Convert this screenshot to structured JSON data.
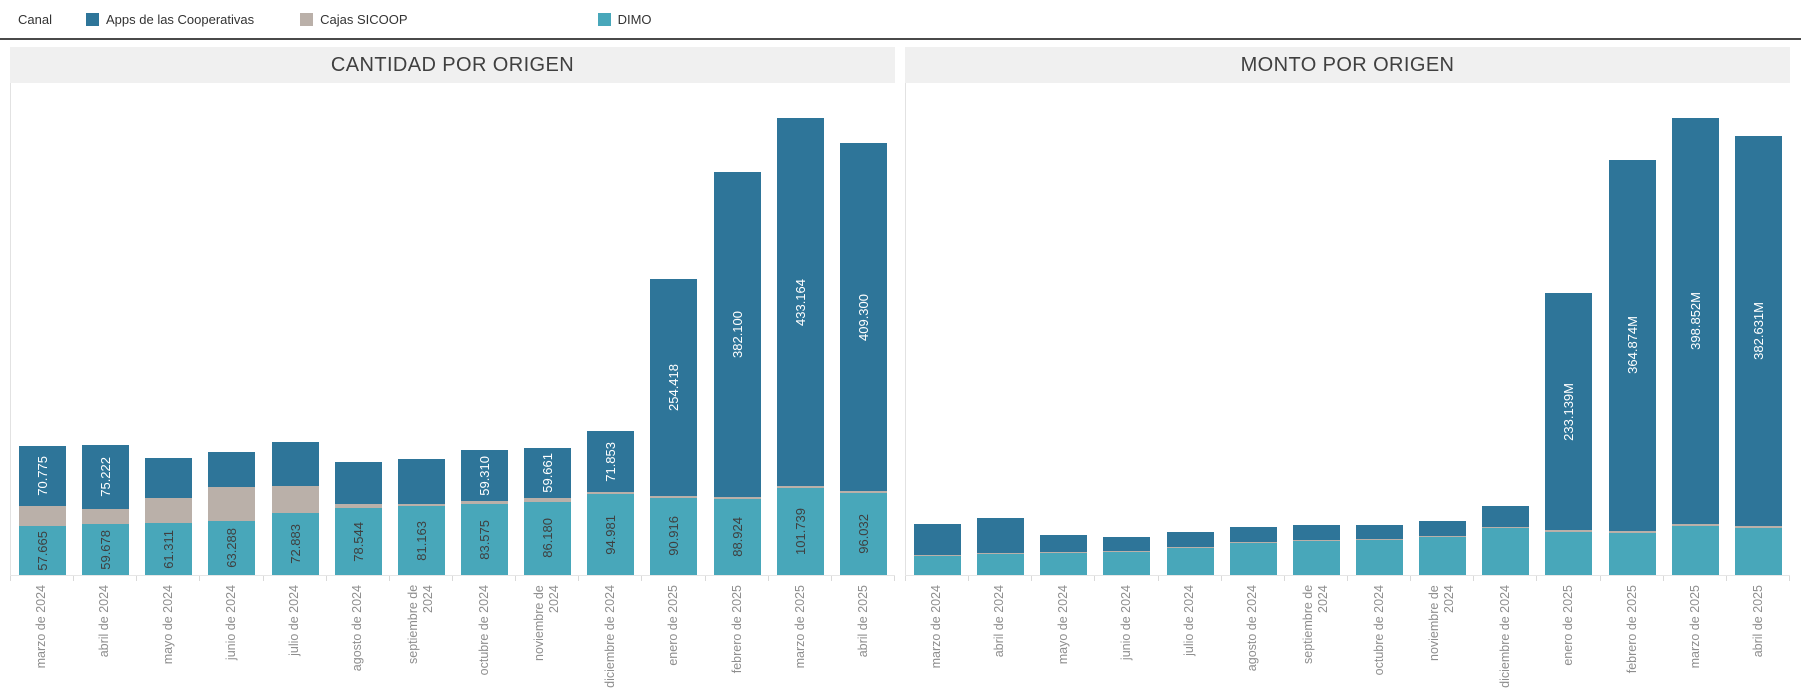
{
  "legend": {
    "title": "Canal",
    "items": [
      {
        "label": "Apps de las Cooperativas",
        "color": "#2E7599"
      },
      {
        "label": "Cajas SICOOP",
        "color": "#BAB0A9"
      },
      {
        "label": "DIMO",
        "color": "#48A7BA"
      }
    ]
  },
  "colors": {
    "apps_blue": "#2E7599",
    "cajas_gray": "#BAB0A9",
    "dimo_teal": "#48A7BA",
    "title_banner": "#F0F0F0",
    "axis_text": "#8E8E8E"
  },
  "chart_data": [
    {
      "type": "bar",
      "stacked": true,
      "title": "CANTIDAD POR ORIGEN",
      "xlabel": "",
      "ylabel": "",
      "ylim": [
        0,
        578000
      ],
      "ymax": 578000,
      "grid": false,
      "legend_position": "top",
      "categories": [
        "marzo de 2024",
        "abril de 2024",
        "mayo de 2024",
        "junio de 2024",
        "julio de 2024",
        "agosto de 2024",
        "septiembre de 2024",
        "octubre de 2024",
        "noviembre de 2024",
        "diciembre de 2024",
        "enero de 2025",
        "febrero de 2025",
        "marzo de 2025",
        "abril de 2025"
      ],
      "series": [
        {
          "name": "Apps de las Cooperativas",
          "color": "#2E7599",
          "label_color": "#FFFFFF",
          "values": [
            70775,
            75222,
            47000,
            41000,
            52000,
            49000,
            52000,
            59310,
            59661,
            71853,
            254418,
            382100,
            433164,
            409300
          ],
          "labels": [
            "70.775",
            "75.222",
            "",
            "",
            "",
            "",
            "",
            "59.310",
            "59.661",
            "71.853",
            "254.418",
            "382.100",
            "433.164",
            "409.300"
          ]
        },
        {
          "name": "Cajas SICOOP",
          "color": "#BAB0A9",
          "label_color": "#3F3F3F",
          "values": [
            23500,
            17600,
            29400,
            40000,
            31700,
            4700,
            2700,
            3500,
            3900,
            2300,
            2300,
            2300,
            2300,
            2300
          ],
          "labels": [
            "",
            "",
            "",
            "",
            "",
            "",
            "",
            "",
            "",
            "",
            "",
            "",
            "",
            ""
          ]
        },
        {
          "name": "DIMO",
          "color": "#48A7BA",
          "label_color": "#3F3F3F",
          "values": [
            57665,
            59678,
            61311,
            63288,
            72883,
            78544,
            81163,
            83575,
            86180,
            94981,
            90916,
            88924,
            101739,
            96032
          ],
          "labels": [
            "57.665",
            "59.678",
            "61.311",
            "63.288",
            "72.883",
            "78.544",
            "81.163",
            "83.575",
            "86.180",
            "94.981",
            "90.916",
            "88.924",
            "101.739",
            "96.032"
          ]
        }
      ]
    },
    {
      "type": "bar",
      "stacked": true,
      "title": "MONTO POR ORIGEN",
      "xlabel": "",
      "ylabel": "",
      "unit": "M",
      "ylim": [
        0,
        483
      ],
      "ymax": 483,
      "grid": false,
      "legend_position": "top",
      "categories": [
        "marzo de 2024",
        "abril de 2024",
        "mayo de 2024",
        "junio de 2024",
        "julio de 2024",
        "agosto de 2024",
        "septiembre de 2024",
        "octubre de 2024",
        "noviembre de 2024",
        "diciembre de 2024",
        "enero de 2025",
        "febrero de 2025",
        "marzo de 2025",
        "abril de 2025"
      ],
      "series": [
        {
          "name": "Apps de las Cooperativas",
          "color": "#2E7599",
          "label_color": "#FFFFFF",
          "values": [
            31,
            34,
            16,
            13.7,
            14.3,
            15,
            14.7,
            14,
            15.3,
            21,
            233.139,
            364.874,
            398.852,
            382.631
          ],
          "labels": [
            "",
            "",
            "",
            "",
            "",
            "",
            "",
            "",
            "",
            "",
            "233.139M",
            "364.874M",
            "398.852M",
            "382.631M"
          ]
        },
        {
          "name": "Cajas SICOOP",
          "color": "#BAB0A9",
          "label_color": "#3F3F3F",
          "values": [
            1,
            1,
            1,
            1,
            1,
            1,
            1,
            1,
            1,
            1,
            2,
            2,
            2,
            2
          ],
          "labels": [
            "",
            "",
            "",
            "",
            "",
            "",
            "",
            "",
            "",
            "",
            "",
            "",
            "",
            ""
          ]
        },
        {
          "name": "DIMO",
          "color": "#48A7BA",
          "label_color": "#3F3F3F",
          "values": [
            18.4,
            20.6,
            22,
            22.6,
            27,
            31,
            33,
            34,
            37,
            46,
            42,
            41,
            48,
            46
          ],
          "labels": [
            "",
            "",
            "",
            "",
            "",
            "",
            "",
            "",
            "",
            "",
            "",
            "",
            "",
            ""
          ]
        }
      ]
    }
  ]
}
